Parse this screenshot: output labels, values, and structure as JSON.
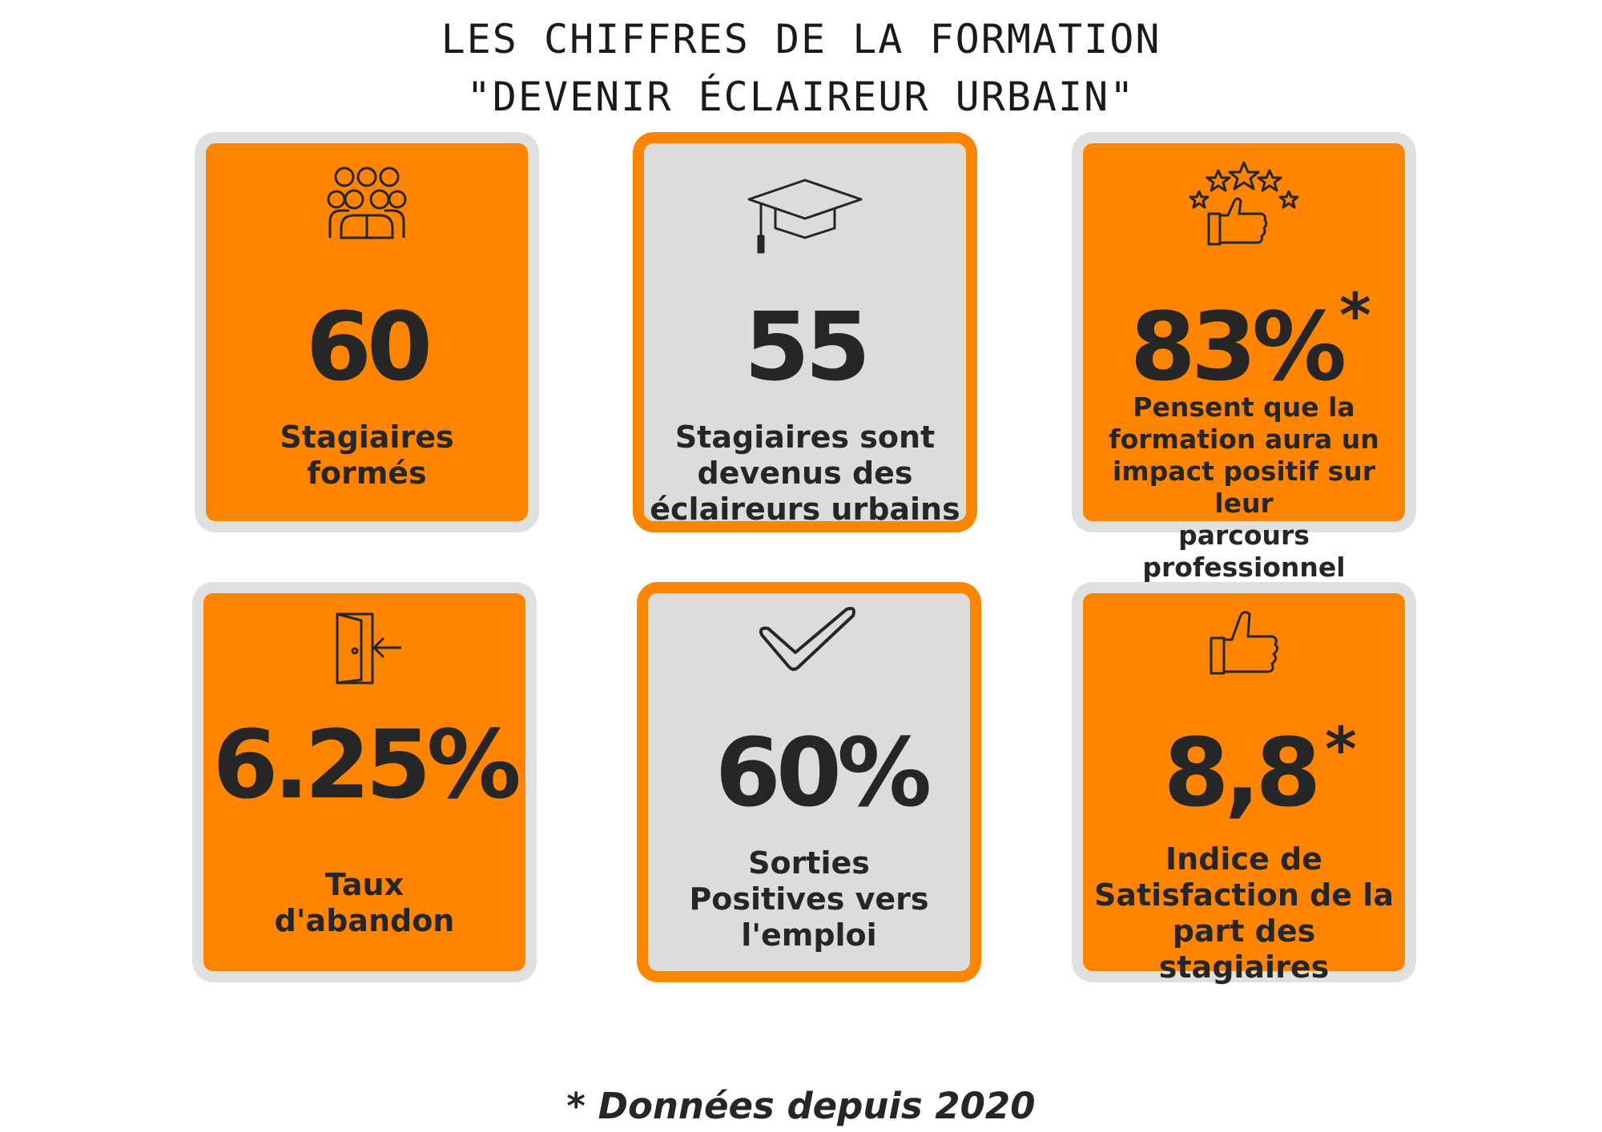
{
  "title": {
    "line1": "LES CHIFFRES DE LA FORMATION",
    "line2": "\"DEVENIR ÉCLAIREUR URBAIN\""
  },
  "cards": [
    {
      "icon": "group-people-icon",
      "value": "60",
      "star": "",
      "label": [
        "Stagiaires",
        "formés"
      ]
    },
    {
      "icon": "graduation-cap-icon",
      "value": "55",
      "star": "",
      "label": [
        "Stagiaires sont",
        "devenus des",
        "éclaireurs urbains"
      ]
    },
    {
      "icon": "thumbs-up-stars-icon",
      "value": "83%",
      "star": "*",
      "label": [
        "Pensent que la",
        "formation aura un",
        "impact positif sur leur",
        "parcours professionnel"
      ]
    },
    {
      "icon": "door-exit-icon",
      "value": "6.25%",
      "star": "",
      "label": [
        "Taux",
        "d'abandon"
      ]
    },
    {
      "icon": "checkmark-icon",
      "value": "60%",
      "star": "",
      "label": [
        "Sorties",
        "Positives vers",
        "l'emploi"
      ]
    },
    {
      "icon": "thumbs-up-icon",
      "value": "8,8",
      "star": "*",
      "label": [
        "Indice de",
        "Satisfaction de la",
        "part des stagiaires"
      ]
    }
  ],
  "footer": "* Données depuis 2020",
  "colors": {
    "orange": "#ff8500",
    "grey": "#dcdcdc",
    "frame_grey": "#e0e0e0",
    "text": "#262626"
  }
}
